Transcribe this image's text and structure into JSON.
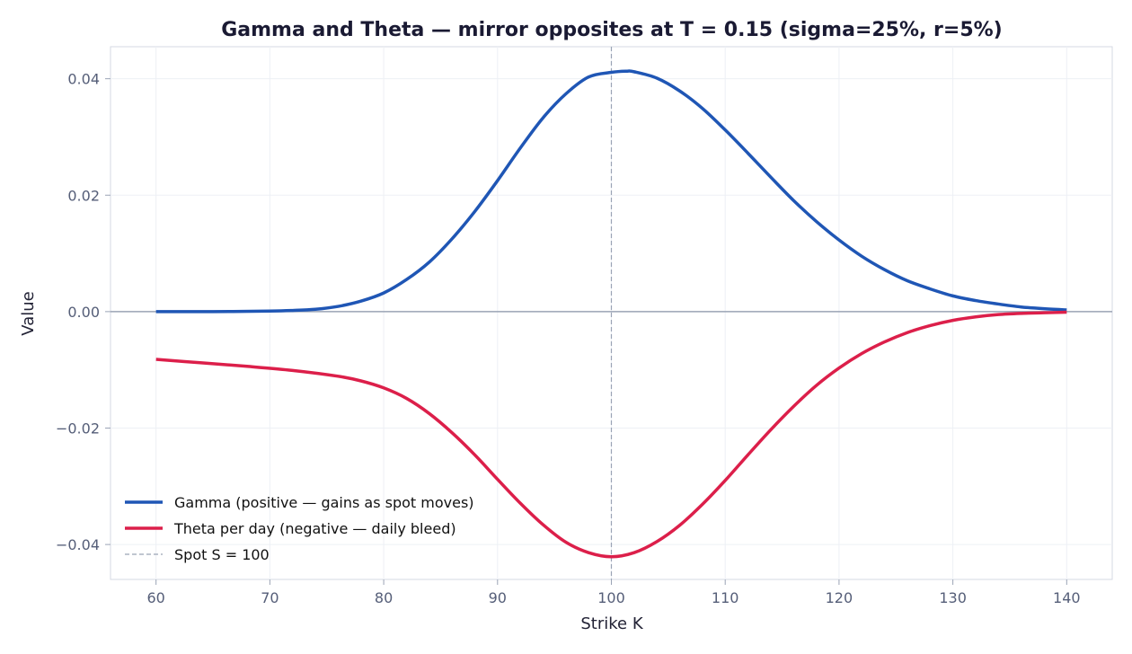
{
  "chart_data": {
    "type": "line",
    "title": "Gamma and Theta — mirror opposites at T = 0.15  (sigma=25%, r=5%)",
    "xlabel": "Strike K",
    "ylabel": "Value",
    "xlim": [
      56,
      144
    ],
    "ylim": [
      -0.046,
      0.0455
    ],
    "x_ticks": [
      60,
      70,
      80,
      90,
      100,
      110,
      120,
      130,
      140
    ],
    "y_ticks": [
      0.04,
      0.02,
      0.0,
      -0.02,
      -0.04
    ],
    "x_tick_labels": [
      "60",
      "70",
      "80",
      "90",
      "100",
      "110",
      "120",
      "130",
      "140"
    ],
    "y_tick_labels": [
      "0.04",
      "0.02",
      "0.00",
      "−0.02",
      "−0.04"
    ],
    "grid": true,
    "legend_position": "lower-left",
    "zero_line_color": "#9aa3b5",
    "series": [
      {
        "name": "Gamma  (positive — gains as spot moves)",
        "color": "#1f56b5",
        "style": "solid",
        "x": [
          60,
          65,
          70,
          72,
          74,
          76,
          78,
          80,
          82,
          84,
          86,
          88,
          90,
          92,
          94,
          96,
          98,
          100,
          101.3,
          102,
          104,
          106,
          108,
          110,
          112,
          114,
          116,
          118,
          120,
          122,
          124,
          126,
          128,
          130,
          132,
          134,
          136,
          138,
          140
        ],
        "y": [
          0.0,
          0.0,
          0.0001,
          0.0002,
          0.0004,
          0.0009,
          0.0018,
          0.0032,
          0.0055,
          0.0085,
          0.0125,
          0.0172,
          0.0225,
          0.0281,
          0.0333,
          0.0374,
          0.0403,
          0.0411,
          0.0413,
          0.0412,
          0.0401,
          0.0379,
          0.0349,
          0.0312,
          0.0272,
          0.0231,
          0.0191,
          0.0155,
          0.0123,
          0.0095,
          0.0072,
          0.0053,
          0.0039,
          0.0027,
          0.0019,
          0.0013,
          0.0008,
          0.0005,
          0.0003
        ]
      },
      {
        "name": "Theta per day  (negative — daily bleed)",
        "color": "#dc1f4a",
        "style": "solid",
        "x": [
          60,
          64,
          68,
          72,
          76,
          78,
          80,
          82,
          84,
          86,
          88,
          90,
          92,
          94,
          96,
          98,
          100,
          102,
          104,
          106,
          108,
          110,
          112,
          114,
          116,
          118,
          120,
          122,
          124,
          126,
          128,
          130,
          132,
          134,
          136,
          138,
          140
        ],
        "y": [
          -0.0082,
          -0.0088,
          -0.0094,
          -0.0101,
          -0.0111,
          -0.0119,
          -0.0131,
          -0.0149,
          -0.0175,
          -0.0208,
          -0.0246,
          -0.0288,
          -0.0329,
          -0.0366,
          -0.0396,
          -0.0414,
          -0.0421,
          -0.0414,
          -0.0395,
          -0.0367,
          -0.0331,
          -0.029,
          -0.0246,
          -0.0203,
          -0.0163,
          -0.0127,
          -0.0097,
          -0.0072,
          -0.0052,
          -0.0036,
          -0.0024,
          -0.0015,
          -0.0009,
          -0.0005,
          -0.0003,
          -0.0002,
          -0.0001
        ]
      },
      {
        "name": "Spot S = 100",
        "color": "#9aa3b5",
        "style": "dashed",
        "vline_x": 100
      }
    ]
  }
}
